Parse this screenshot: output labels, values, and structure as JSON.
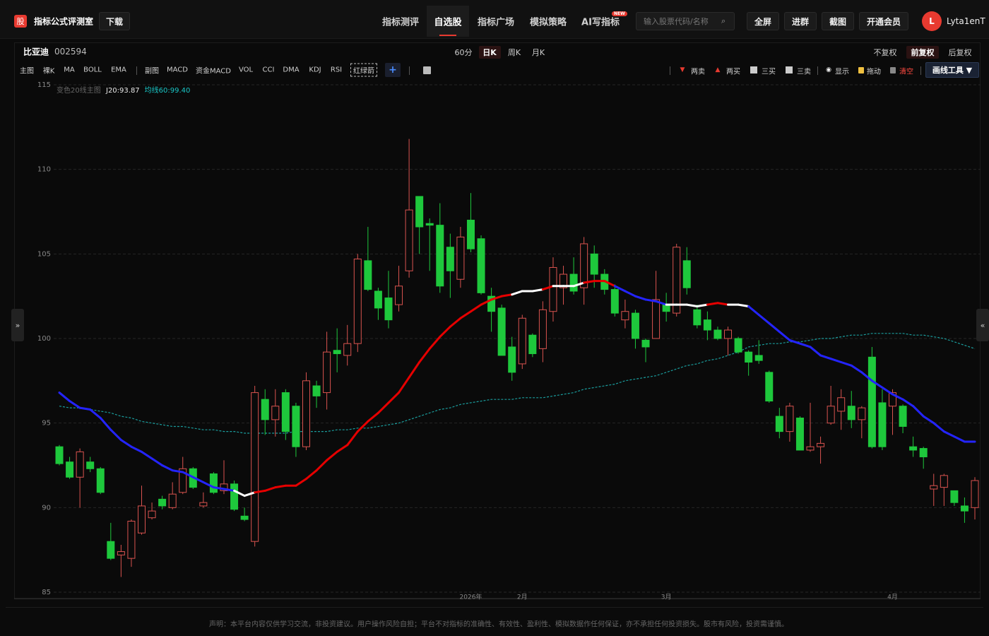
{
  "header": {
    "logo": "股",
    "brand": "指标公式评测室",
    "download": "下载",
    "nav": [
      "指标测评",
      "自选股",
      "指标广场",
      "模拟策略",
      "AI写指标"
    ],
    "new_badge": "NEW",
    "search_placeholder": "输入股票代码/名称",
    "buttons": [
      "全屏",
      "进群",
      "截图",
      "开通会员"
    ],
    "avatar": "L",
    "user": "Lyta1enT"
  },
  "toolbar": {
    "stock_name": "比亚迪",
    "stock_code": "002594",
    "periods": [
      "60分",
      "日K",
      "周K",
      "月K"
    ],
    "adjust": [
      "不复权",
      "前复权",
      "后复权"
    ],
    "indicators": [
      "主图",
      "裸K",
      "MA",
      "BOLL",
      "EMA",
      "副图",
      "MACD",
      "资金MACD",
      "VOL",
      "CCI",
      "DMA",
      "KDJ",
      "RSI",
      "红绿箭"
    ],
    "plus": "+",
    "draw": [
      "两卖",
      "两买",
      "三买",
      "三卖",
      "显示",
      "拖动",
      "清空"
    ],
    "draw_tool": "画线工具 ▼",
    "collapse_left": "»",
    "collapse_right": "«"
  },
  "footer": {
    "disclaimer": "声明：本平台内容仅供学习交流，非投资建议。用户操作风险自担；平台不对指标的准确性、有效性、盈利性、模拟数据作任何保证，亦不承担任何投资损失。股市有风险，投资需谨慎。"
  },
  "chart_data": {
    "type": "candlestick",
    "legend_title": "变色20线主图",
    "categories": [
      null,
      null,
      null,
      null,
      null,
      null,
      null,
      null,
      null,
      null,
      null,
      null,
      null,
      null,
      null,
      null,
      null,
      null,
      null,
      null,
      null,
      null,
      null,
      null,
      null,
      null,
      null,
      null,
      null,
      null,
      null,
      null,
      null,
      null,
      null,
      null,
      null,
      null,
      null,
      null,
      "2026年",
      null,
      null,
      null,
      null,
      "2月",
      null,
      null,
      null,
      null,
      null,
      null,
      null,
      null,
      null,
      null,
      null,
      null,
      null,
      "3月",
      null,
      null,
      null,
      null,
      null,
      null,
      null,
      null,
      null,
      null,
      null,
      null,
      null,
      null,
      null,
      null,
      null,
      null,
      null,
      null,
      null,
      "4月",
      null,
      null,
      null,
      null,
      null,
      null,
      null,
      null
    ],
    "open": [
      93.6,
      92.7,
      91.8,
      92.7,
      92.3,
      88.0,
      87.2,
      87.0,
      88.5,
      89.4,
      90.5,
      90.0,
      90.9,
      92.3,
      90.1,
      92.0,
      91.0,
      91.4,
      89.5,
      88.0,
      96.4,
      95.2,
      96.8,
      96.0,
      93.6,
      97.2,
      96.8,
      99.3,
      99.0,
      99.7,
      104.6,
      102.8,
      102.4,
      102.0,
      104.0,
      108.4,
      106.8,
      106.7,
      105.4,
      103.5,
      107.0,
      105.9,
      102.5,
      101.8,
      99.5,
      98.5,
      100.2,
      99.4,
      101.6,
      103.0,
      103.8,
      103.0,
      105.0,
      103.8,
      102.9,
      101.1,
      101.5,
      99.9,
      100.0,
      102.0,
      101.5,
      104.6,
      101.7,
      101.1,
      100.5,
      100.0,
      100.0,
      99.2,
      99.0,
      98.0,
      95.4,
      94.5,
      95.3,
      93.4,
      93.6,
      95.0,
      95.7,
      96.0,
      95.2,
      98.9,
      96.2,
      96.0,
      96.0,
      93.6,
      93.5,
      91.1,
      91.2,
      91.0,
      90.1,
      90.0
    ],
    "high": [
      93.7,
      93.0,
      93.5,
      93.0,
      92.4,
      89.1,
      87.8,
      89.3,
      91.3,
      90.3,
      90.7,
      91.5,
      93.0,
      92.4,
      90.9,
      92.1,
      92.8,
      91.6,
      90.0,
      97.2,
      97.0,
      97.0,
      97.0,
      96.2,
      98.0,
      97.5,
      100.4,
      100.6,
      100.8,
      105.0,
      106.6,
      103.0,
      104.0,
      104.3,
      111.8,
      108.4,
      107.1,
      108.0,
      106.2,
      106.6,
      108.6,
      106.1,
      103.0,
      102.0,
      100.1,
      101.4,
      100.3,
      102.2,
      104.8,
      104.3,
      104.8,
      106.0,
      105.5,
      104.1,
      103.2,
      102.3,
      101.7,
      100.0,
      104.0,
      102.7,
      105.6,
      105.4,
      102.0,
      101.6,
      100.7,
      100.7,
      100.1,
      99.3,
      99.9,
      98.1,
      95.9,
      96.2,
      95.4,
      96.2,
      94.2,
      97.2,
      97.0,
      96.9,
      96.0,
      99.5,
      97.0,
      97.0,
      96.1,
      94.2,
      93.6,
      92.0,
      92.0,
      91.0,
      90.6,
      91.8
    ],
    "low": [
      92.5,
      91.7,
      90.0,
      92.1,
      90.8,
      86.9,
      85.9,
      86.5,
      88.4,
      89.3,
      89.9,
      89.9,
      90.8,
      91.1,
      90.0,
      90.8,
      90.8,
      89.8,
      89.2,
      87.7,
      94.3,
      94.2,
      94.0,
      93.0,
      93.4,
      95.9,
      95.8,
      98.0,
      98.4,
      99.2,
      102.8,
      101.1,
      100.6,
      101.6,
      103.6,
      105.0,
      104.0,
      102.7,
      102.4,
      103.0,
      105.1,
      102.6,
      100.4,
      99.0,
      97.5,
      98.2,
      98.9,
      98.6,
      101.0,
      102.0,
      102.6,
      102.0,
      103.0,
      102.6,
      101.3,
      100.6,
      99.4,
      98.6,
      100.0,
      101.0,
      101.3,
      102.6,
      100.6,
      99.9,
      99.9,
      99.0,
      99.1,
      97.8,
      98.5,
      96.2,
      94.1,
      93.9,
      93.4,
      93.3,
      92.6,
      94.9,
      94.6,
      94.7,
      94.1,
      93.5,
      93.4,
      94.3,
      94.4,
      93.0,
      92.3,
      90.1,
      90.1,
      90.1,
      89.1,
      89.3
    ],
    "close": [
      92.6,
      91.8,
      93.3,
      92.3,
      90.9,
      87.0,
      87.4,
      89.2,
      90.1,
      89.8,
      90.1,
      90.8,
      92.3,
      91.2,
      90.3,
      90.9,
      91.4,
      89.9,
      89.3,
      96.8,
      95.2,
      96.0,
      94.5,
      93.6,
      97.5,
      96.6,
      99.2,
      99.1,
      99.7,
      104.7,
      102.9,
      101.8,
      101.1,
      103.1,
      107.6,
      106.6,
      106.7,
      103.1,
      104.0,
      106.0,
      105.3,
      102.7,
      101.6,
      99.0,
      98.0,
      101.2,
      99.1,
      101.7,
      104.2,
      103.8,
      102.8,
      105.6,
      103.8,
      102.9,
      101.5,
      101.6,
      100.0,
      99.5,
      102.3,
      101.6,
      105.4,
      103.0,
      100.8,
      100.5,
      100.0,
      100.5,
      99.2,
      98.6,
      98.7,
      96.3,
      94.5,
      96.0,
      93.4,
      93.6,
      93.8,
      96.0,
      96.5,
      95.2,
      95.9,
      93.6,
      93.6,
      96.8,
      94.8,
      93.4,
      93.0,
      91.3,
      91.9,
      90.3,
      89.8,
      91.6
    ],
    "up_color": "#d9534f",
    "down_color": "#1ec83c",
    "lines": [
      {
        "name": "J20:93.87",
        "label_color": "#e8e8e8",
        "values": [
          96.8,
          96.3,
          95.9,
          95.8,
          95.3,
          94.6,
          94.0,
          93.6,
          93.3,
          92.9,
          92.5,
          92.2,
          92.1,
          91.8,
          91.5,
          91.2,
          91.1,
          91.0,
          90.7,
          90.9,
          91.0,
          91.2,
          91.3,
          91.3,
          91.7,
          92.2,
          92.8,
          93.3,
          93.7,
          94.5,
          95.1,
          95.6,
          96.2,
          96.8,
          97.7,
          98.6,
          99.4,
          100.1,
          100.7,
          101.2,
          101.6,
          102.0,
          102.3,
          102.5,
          102.6,
          102.8,
          102.8,
          102.9,
          103.1,
          103.1,
          103.1,
          103.3,
          103.4,
          103.4,
          103.1,
          102.8,
          102.5,
          102.3,
          102.2,
          102.0,
          102.0,
          102.0,
          101.9,
          102.0,
          102.1,
          102.0,
          102.0,
          101.9,
          101.4,
          100.9,
          100.4,
          99.9,
          99.7,
          99.5,
          99.0,
          98.8,
          98.6,
          98.4,
          98.0,
          97.5,
          97.1,
          96.7,
          96.4,
          96.0,
          95.4,
          95.0,
          94.5,
          94.2,
          93.9,
          93.9
        ],
        "colors": [
          "#2424ff",
          "#2424ff",
          "#2424ff",
          "#2424ff",
          "#2424ff",
          "#2424ff",
          "#2424ff",
          "#2424ff",
          "#2424ff",
          "#2424ff",
          "#2424ff",
          "#2424ff",
          "#2424ff",
          "#2424ff",
          "#2424ff",
          "#2424ff",
          "#2424ff",
          "#2424ff",
          "#ffffff",
          "#ffffff",
          "#e60000",
          "#e60000",
          "#e60000",
          "#e60000",
          "#e60000",
          "#e60000",
          "#e60000",
          "#e60000",
          "#e60000",
          "#e60000",
          "#e60000",
          "#e60000",
          "#e60000",
          "#e60000",
          "#e60000",
          "#e60000",
          "#e60000",
          "#e60000",
          "#e60000",
          "#e60000",
          "#e60000",
          "#e60000",
          "#e60000",
          "#e60000",
          "#e60000",
          "#ffffff",
          "#ffffff",
          "#ffffff",
          "#e60000",
          "#ffffff",
          "#ffffff",
          "#ffffff",
          "#e60000",
          "#e60000",
          "#e60000",
          "#2424ff",
          "#2424ff",
          "#2424ff",
          "#2424ff",
          "#2424ff",
          "#ffffff",
          "#ffffff",
          "#ffffff",
          "#ffffff",
          "#e60000",
          "#e60000",
          "#ffffff",
          "#ffffff",
          "#2424ff",
          "#2424ff",
          "#2424ff",
          "#2424ff",
          "#2424ff",
          "#2424ff",
          "#2424ff",
          "#2424ff",
          "#2424ff",
          "#2424ff",
          "#2424ff",
          "#2424ff",
          "#2424ff",
          "#2424ff",
          "#2424ff",
          "#2424ff",
          "#2424ff",
          "#2424ff",
          "#2424ff",
          "#2424ff",
          "#2424ff",
          "#2424ff"
        ]
      },
      {
        "name": "均线60:99.40",
        "color": "#1a9c9c",
        "label_color": "#19c6c6",
        "dashed": true,
        "values": [
          96.0,
          95.9,
          95.9,
          95.8,
          95.7,
          95.6,
          95.4,
          95.3,
          95.1,
          95.0,
          94.9,
          94.8,
          94.8,
          94.7,
          94.6,
          94.6,
          94.5,
          94.5,
          94.4,
          94.4,
          94.4,
          94.4,
          94.4,
          94.5,
          94.5,
          94.5,
          94.5,
          94.6,
          94.6,
          94.7,
          94.7,
          94.8,
          94.9,
          95.0,
          95.2,
          95.4,
          95.6,
          95.8,
          95.9,
          96.1,
          96.2,
          96.3,
          96.4,
          96.4,
          96.4,
          96.5,
          96.5,
          96.5,
          96.6,
          96.7,
          96.8,
          97.0,
          97.1,
          97.2,
          97.3,
          97.5,
          97.6,
          97.7,
          97.8,
          98.0,
          98.2,
          98.4,
          98.5,
          98.7,
          98.8,
          99.0,
          99.2,
          99.5,
          99.6,
          99.7,
          99.7,
          99.8,
          99.8,
          99.9,
          100.0,
          100.0,
          100.1,
          100.2,
          100.2,
          100.3,
          100.3,
          100.3,
          100.3,
          100.2,
          100.2,
          100.1,
          100.0,
          99.8,
          99.6,
          99.4
        ]
      }
    ],
    "ylim": [
      85,
      115
    ],
    "yticks": [
      85,
      90,
      95,
      100,
      105,
      110,
      115
    ],
    "grid": true
  }
}
